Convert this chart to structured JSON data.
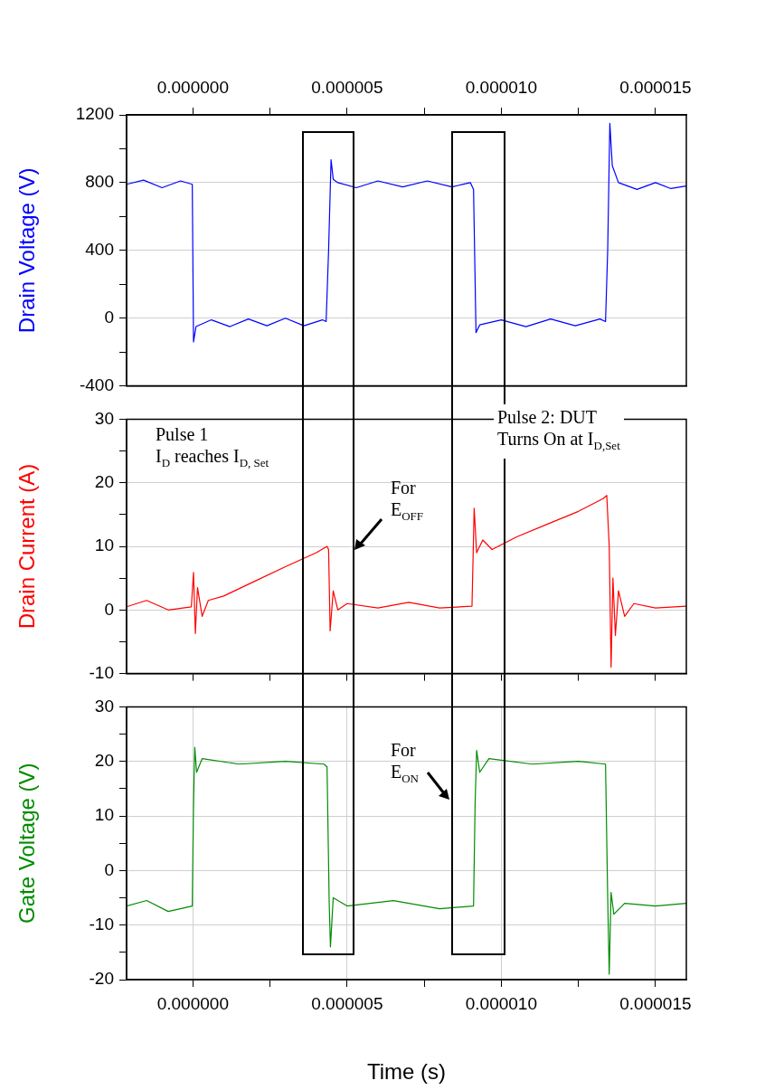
{
  "chart_data": [
    {
      "type": "line",
      "ylabel": "Drain Voltage (V)",
      "tick_labels": "y",
      "grid": true,
      "marker": "none",
      "line_style": "solid",
      "xlim": [
        -2.15e-06,
        1.6e-05
      ],
      "x2lim": [
        -2.15e-06,
        1.6e-05
      ],
      "x2ticks": [
        {
          "value": 0,
          "label": "0.000000"
        },
        {
          "value": 2.5e-06,
          "label": null
        },
        {
          "value": 5e-06,
          "label": "0.000005"
        },
        {
          "value": 7.5e-06,
          "label": null
        },
        {
          "value": 1e-05,
          "label": "0.000010"
        },
        {
          "value": 1.25e-05,
          "label": null
        },
        {
          "value": 1.5e-05,
          "label": "0.000015"
        }
      ],
      "ylim": [
        -400,
        1200
      ],
      "yticks": [
        -400,
        {
          "value": -200,
          "label": null
        },
        0,
        {
          "value": 200,
          "label": null
        },
        400,
        {
          "value": 600,
          "label": null
        },
        800,
        {
          "value": 1000,
          "label": null
        },
        1200
      ],
      "series": [
        {
          "color": "#0000ff",
          "x": [
            -2.15e-06,
            -1.6e-06,
            -1e-06,
            -4e-07,
            -2e-08,
            2e-08,
            1e-07,
            6e-07,
            1.2e-06,
            1.8e-06,
            2.4e-06,
            3e-06,
            3.6e-06,
            4.2e-06,
            4.32e-06,
            4.4e-06,
            4.48e-06,
            4.55e-06,
            4.7e-06,
            5.3e-06,
            6e-06,
            6.8e-06,
            7.6e-06,
            8.4e-06,
            9e-06,
            9.1e-06,
            9.18e-06,
            9.3e-06,
            1e-05,
            1.08e-05,
            1.16e-05,
            1.24e-05,
            1.32e-05,
            1.338e-05,
            1.345e-05,
            1.352e-05,
            1.36e-05,
            1.38e-05,
            1.44e-05,
            1.5e-05,
            1.55e-05,
            1.6e-05
          ],
          "values": [
            790,
            815,
            770,
            810,
            790,
            -140,
            -50,
            -10,
            -50,
            -5,
            -45,
            0,
            -45,
            -10,
            -20,
            400,
            935,
            820,
            800,
            770,
            810,
            775,
            810,
            775,
            800,
            760,
            -85,
            -40,
            -10,
            -50,
            -5,
            -45,
            -5,
            -20,
            400,
            1150,
            900,
            800,
            760,
            800,
            765,
            780
          ]
        }
      ]
    },
    {
      "type": "line",
      "ylabel": "Drain Current (A)",
      "tick_labels": "y",
      "grid": true,
      "marker": "none",
      "line_style": "solid",
      "annotations": [
        "Pulse 1\nI$_{D}$ reaches I$_{D, Set}$",
        "For\nE$_{OFF}$",
        "Pulse 2: DUT\nTurns On at I$_{D,Set}$"
      ],
      "xlim": [
        -2.15e-06,
        1.6e-05
      ],
      "xticks": [
        {
          "value": 0,
          "label": null
        },
        {
          "value": 2.5e-06,
          "label": null
        },
        {
          "value": 5e-06,
          "label": null
        },
        {
          "value": 7.5e-06,
          "label": null
        },
        {
          "value": 1e-05,
          "label": null
        },
        {
          "value": 1.25e-05,
          "label": null
        },
        {
          "value": 1.5e-05,
          "label": null
        }
      ],
      "ylim": [
        -10,
        30
      ],
      "yticks": [
        -10,
        {
          "value": -5,
          "label": null
        },
        0,
        {
          "value": 5,
          "label": null
        },
        10,
        {
          "value": 15,
          "label": null
        },
        20,
        {
          "value": 25,
          "label": null
        },
        30
      ],
      "series": [
        {
          "color": "#ff0000",
          "x": [
            -2.15e-06,
            -1.5e-06,
            -8e-07,
            -5e-08,
            2e-08,
            8e-08,
            1.5e-07,
            3e-07,
            5e-07,
            1e-06,
            2e-06,
            3e-06,
            4e-06,
            4.35e-06,
            4.4e-06,
            4.45e-06,
            4.55e-06,
            4.7e-06,
            5e-06,
            6e-06,
            7e-06,
            8e-06,
            9.05e-06,
            9.12e-06,
            9.2e-06,
            9.4e-06,
            9.7e-06,
            1.05e-05,
            1.15e-05,
            1.25e-05,
            1.33e-05,
            1.342e-05,
            1.35e-05,
            1.356e-05,
            1.362e-05,
            1.37e-05,
            1.38e-05,
            1.4e-05,
            1.43e-05,
            1.5e-05,
            1.6e-05
          ],
          "values": [
            0.5,
            1.5,
            0,
            0.5,
            5.9,
            -3.7,
            3.5,
            -1,
            1.5,
            2.2,
            4.5,
            6.8,
            9,
            10,
            9.5,
            -3.3,
            3,
            0,
            1,
            0.3,
            1.2,
            0.3,
            0.6,
            16,
            9,
            11,
            9.5,
            11.5,
            13.5,
            15.5,
            17.5,
            18,
            10,
            -9,
            5,
            -4,
            3,
            -1,
            1,
            0.3,
            0.6
          ]
        }
      ]
    },
    {
      "type": "line",
      "ylabel": "Gate Voltage (V)",
      "xlabel": "Time (s)",
      "grid": true,
      "marker": "none",
      "line_style": "solid",
      "annotations": [
        "For\nE$_{ON}$"
      ],
      "xlim": [
        -2.15e-06,
        1.6e-05
      ],
      "xticks": [
        {
          "value": 0,
          "label": "0.000000"
        },
        {
          "value": 2.5e-06,
          "label": null
        },
        {
          "value": 5e-06,
          "label": "0.000005"
        },
        {
          "value": 7.5e-06,
          "label": null
        },
        {
          "value": 1e-05,
          "label": "0.000010"
        },
        {
          "value": 1.25e-05,
          "label": null
        },
        {
          "value": 1.5e-05,
          "label": "0.000015"
        }
      ],
      "ylim": [
        -20,
        30
      ],
      "yticks": [
        -20,
        {
          "value": -15,
          "label": null
        },
        -10,
        {
          "value": -5,
          "label": null
        },
        0,
        {
          "value": 5,
          "label": null
        },
        10,
        {
          "value": 15,
          "label": null
        },
        20,
        {
          "value": 25,
          "label": null
        },
        {
          "value": 30,
          "label": "30"
        }
      ],
      "series": [
        {
          "color": "#008c00",
          "x": [
            -2.15e-06,
            -1.5e-06,
            -8e-07,
            -2e-08,
            2e-08,
            6e-08,
            1.2e-07,
            3e-07,
            1.5e-06,
            3e-06,
            4.25e-06,
            4.35e-06,
            4.42e-06,
            4.46e-06,
            4.55e-06,
            5e-06,
            6.5e-06,
            8e-06,
            9.1e-06,
            9.15e-06,
            9.2e-06,
            9.3e-06,
            9.6e-06,
            1.1e-05,
            1.25e-05,
            1.338e-05,
            1.345e-05,
            1.35e-05,
            1.356e-05,
            1.365e-05,
            1.4e-05,
            1.5e-05,
            1.6e-05
          ],
          "values": [
            -6.5,
            -5.5,
            -7.5,
            -6.5,
            12,
            22.6,
            18,
            20.5,
            19.5,
            20,
            19.5,
            19,
            -6,
            -14,
            -5,
            -6.5,
            -5.5,
            -7,
            -6.5,
            12,
            22,
            18,
            20.5,
            19.5,
            20,
            19.5,
            -5,
            -19,
            -4,
            -8,
            -6,
            -6.5,
            -6
          ]
        }
      ]
    }
  ]
}
